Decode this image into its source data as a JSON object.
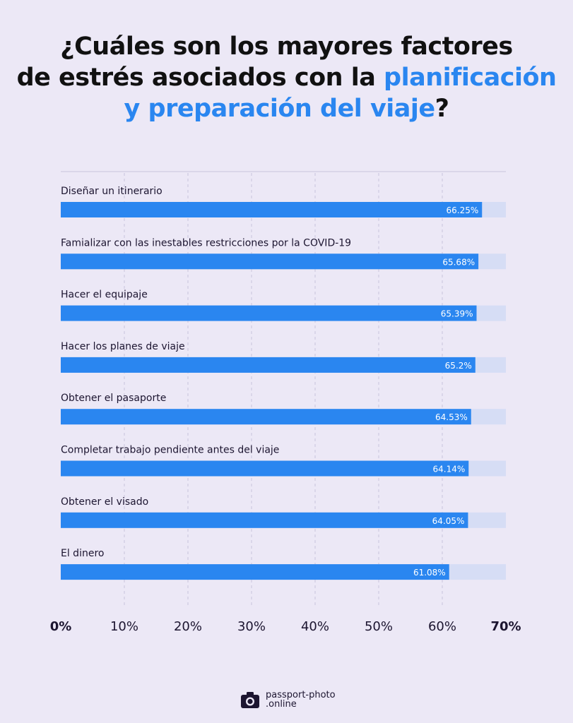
{
  "title": {
    "line1": "¿Cuáles son los mayores factores",
    "line2_plain": "de estrés asociados con la ",
    "line2_highlight": "planificación",
    "line3_highlight": "y preparación del viaje",
    "line3_plain": "?"
  },
  "colors": {
    "bar": "#2a86f0",
    "track": "#d6ddf5",
    "background": "#ece8f6",
    "title_highlight": "#2a86f0"
  },
  "chart_data": {
    "type": "bar",
    "orientation": "horizontal",
    "categories": [
      "Diseñar un itinerario",
      "Famializar con las inestables restricciones por la COVID-19",
      "Hacer el equipaje",
      "Hacer los planes de viaje",
      "Obtener el pasaporte",
      "Completar trabajo pendiente antes del viaje",
      "Obtener el visado",
      "El dinero"
    ],
    "values": [
      66.25,
      65.68,
      65.39,
      65.2,
      64.53,
      64.14,
      64.05,
      61.08
    ],
    "value_labels": [
      "66.25%",
      "65.68%",
      "65.39%",
      "65.2%",
      "64.53%",
      "64.14%",
      "64.05%",
      "61.08%"
    ],
    "x_ticks": [
      "0%",
      "10%",
      "20%",
      "30%",
      "40%",
      "50%",
      "60%",
      "70%"
    ],
    "xlim": [
      0,
      70
    ],
    "grid": true
  },
  "logo": {
    "icon": "camera-icon",
    "line1": "passport-photo",
    "line2": ".online"
  }
}
